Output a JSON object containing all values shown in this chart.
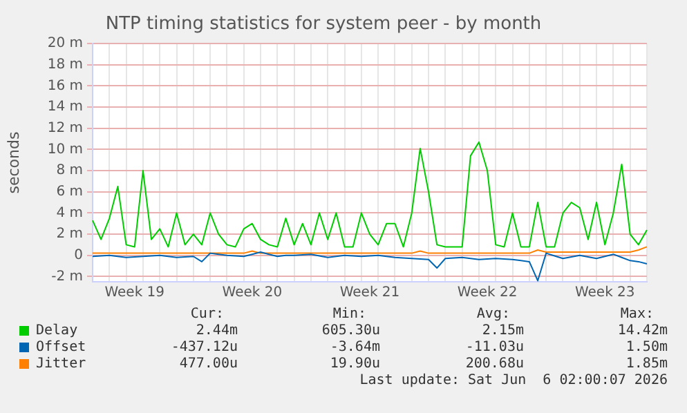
{
  "chart_data": {
    "type": "line",
    "title": "NTP timing statistics for system peer - by month",
    "ylabel": "seconds",
    "categories": [
      null,
      null,
      null,
      null,
      null,
      "Week 19",
      null,
      null,
      null,
      null,
      null,
      null,
      null,
      null,
      null,
      null,
      null,
      null,
      null,
      "Week 20",
      null,
      null,
      null,
      null,
      null,
      null,
      null,
      null,
      null,
      null,
      null,
      null,
      null,
      "Week 21",
      null,
      null,
      null,
      null,
      null,
      null,
      null,
      null,
      null,
      null,
      null,
      null,
      null,
      "Week 22",
      null,
      null,
      null,
      null,
      null,
      null,
      null,
      null,
      null,
      null,
      null,
      null,
      null,
      "Week 23",
      null,
      null,
      null,
      null,
      null
    ],
    "ylim": [
      -2.5,
      20
    ],
    "yticks": [
      {
        "value": -2,
        "label": "-2 m"
      },
      0,
      {
        "value": 2,
        "label": "2 m"
      },
      {
        "value": 4,
        "label": "4 m"
      },
      {
        "value": 6,
        "label": "6 m"
      },
      {
        "value": 8,
        "label": "8 m"
      },
      {
        "value": 10,
        "label": "10 m"
      },
      {
        "value": 12,
        "label": "12 m"
      },
      {
        "value": 14,
        "label": "14 m"
      },
      {
        "value": 16,
        "label": "16 m"
      },
      {
        "value": 18,
        "label": "18 m"
      },
      {
        "value": 20,
        "label": "20 m"
      }
    ],
    "grid": true,
    "legend": "bottom",
    "marker": "none",
    "line_style": "solid",
    "series": [
      {
        "name": "Delay",
        "color": "#00cc00",
        "values": [
          3.3,
          1.5,
          3.5,
          6.5,
          1,
          0.8,
          8,
          1.5,
          2.5,
          0.8,
          4,
          1,
          2,
          1,
          4,
          2,
          1,
          0.8,
          2.5,
          3,
          1.5,
          1,
          0.8,
          3.5,
          1,
          3,
          1,
          4,
          1.5,
          4,
          0.8,
          0.8,
          4,
          2,
          1,
          3,
          3,
          0.8,
          4,
          10.1,
          6,
          1,
          0.8,
          0.8,
          0.8,
          9.4,
          10.7,
          8,
          1,
          0.8,
          4,
          0.8,
          0.8,
          5,
          0.8,
          0.8,
          4,
          5,
          4.5,
          1.5,
          5,
          1,
          4,
          8.6,
          2,
          1,
          2.4
        ]
      },
      {
        "name": "Offset",
        "color": "#0066b3",
        "values": [
          -0.1,
          -0.05,
          0,
          -0.1,
          -0.2,
          -0.15,
          -0.1,
          -0.05,
          0,
          -0.1,
          -0.2,
          -0.15,
          -0.1,
          -0.6,
          0.2,
          0.1,
          0,
          -0.05,
          -0.1,
          0.1,
          0.3,
          0.1,
          -0.1,
          0,
          0,
          0.05,
          0.1,
          -0.05,
          -0.2,
          -0.1,
          0,
          -0.05,
          -0.1,
          -0.05,
          0,
          -0.1,
          -0.2,
          -0.25,
          -0.3,
          -0.35,
          -0.4,
          -1.2,
          -0.3,
          -0.25,
          -0.2,
          -0.3,
          -0.4,
          -0.35,
          -0.3,
          -0.35,
          -0.4,
          -0.5,
          -0.6,
          -2.4,
          0.2,
          -0.05,
          -0.3,
          -0.15,
          0,
          -0.15,
          -0.3,
          -0.1,
          0.1,
          -0.2,
          -0.5,
          -0.6,
          -0.8
        ]
      },
      {
        "name": "Jitter",
        "color": "#ff8000",
        "values": [
          0.2,
          0.2,
          0.2,
          0.2,
          0.2,
          0.2,
          0.2,
          0.2,
          0.2,
          0.2,
          0.2,
          0.2,
          0.2,
          0.2,
          0.2,
          0.2,
          0.2,
          0.2,
          0.2,
          0.4,
          0.2,
          0.2,
          0.2,
          0.2,
          0.2,
          0.2,
          0.2,
          0.2,
          0.2,
          0.2,
          0.2,
          0.2,
          0.2,
          0.2,
          0.2,
          0.2,
          0.2,
          0.2,
          0.2,
          0.4,
          0.2,
          0.2,
          0.2,
          0.2,
          0.2,
          0.2,
          0.2,
          0.2,
          0.2,
          0.2,
          0.2,
          0.2,
          0.2,
          0.5,
          0.3,
          0.3,
          0.3,
          0.3,
          0.3,
          0.3,
          0.3,
          0.3,
          0.3,
          0.3,
          0.3,
          0.5,
          0.8
        ]
      }
    ],
    "annotations": [
      "Cur:",
      "Min:",
      "Avg:",
      "Max:",
      "2.44m",
      "605.30u",
      "2.15m",
      "14.42m",
      "-437.12u",
      "-3.64m",
      "-11.03u",
      "1.50m",
      "477.00u",
      "19.90u",
      "200.68u",
      "1.85m",
      "Last update: Sat Jun  6 02:00:07 2026"
    ]
  }
}
